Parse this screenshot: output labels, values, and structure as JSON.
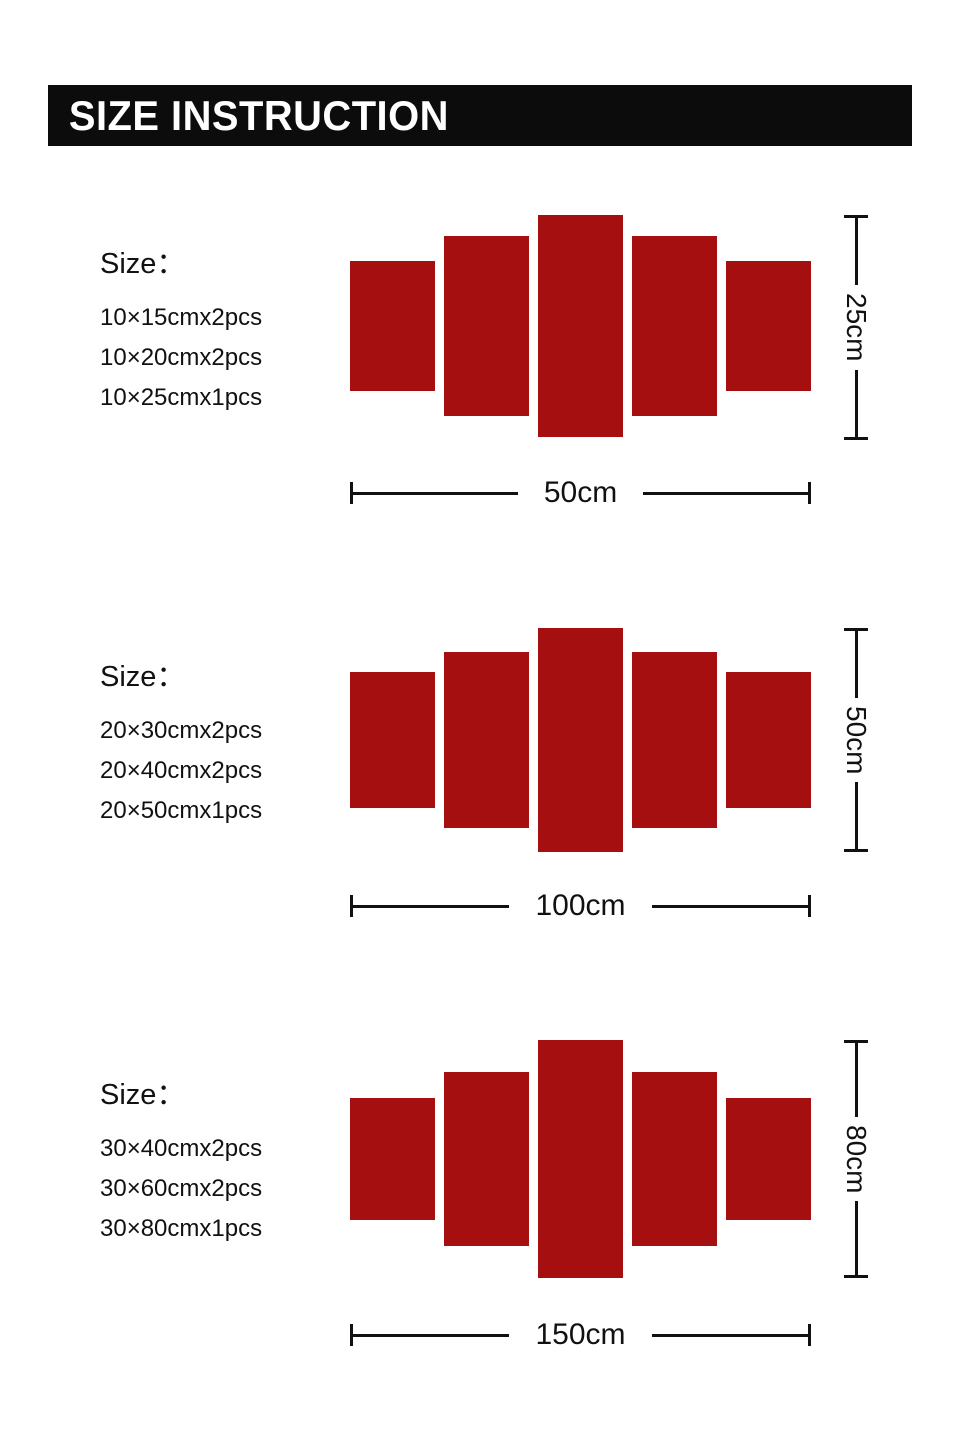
{
  "header": {
    "title": "SIZE INSTRUCTION"
  },
  "sections": [
    {
      "size_label": "Size：",
      "pieces": [
        "10×15cmx2pcs",
        "10×20cmx2pcs",
        "10×25cmx1pcs"
      ],
      "height_label": "25cm",
      "width_label": "50cm"
    },
    {
      "size_label": "Size：",
      "pieces": [
        "20×30cmx2pcs",
        "20×40cmx2pcs",
        "20×50cmx1pcs"
      ],
      "height_label": "50cm",
      "width_label": "100cm"
    },
    {
      "size_label": "Size：",
      "pieces": [
        "30×40cmx2pcs",
        "30×60cmx2pcs",
        "30×80cmx1pcs"
      ],
      "height_label": "80cm",
      "width_label": "150cm"
    }
  ],
  "colors": {
    "panel": "#a50f0f",
    "line": "#111111",
    "header_bg": "#0c0c0c",
    "header_text": "#ffffff"
  }
}
